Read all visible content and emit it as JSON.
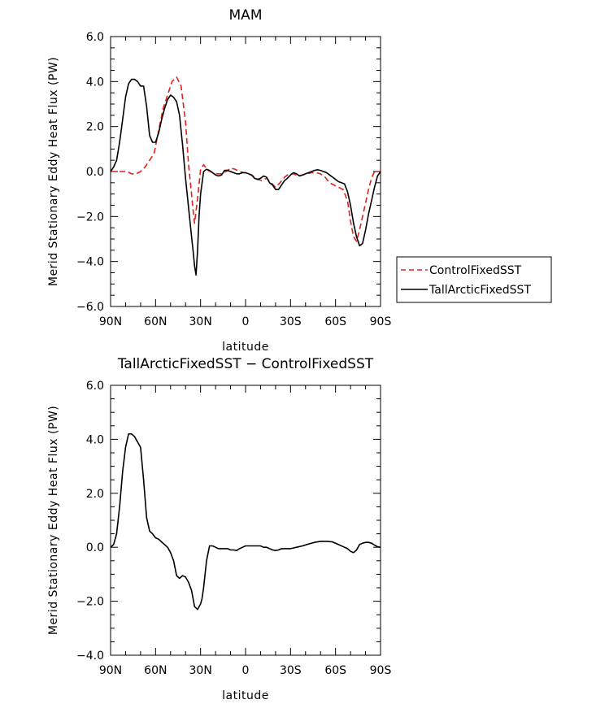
{
  "chart_data": [
    {
      "type": "line",
      "title": "MAM",
      "xlabel": "latitude",
      "ylabel": "Merid Stationary Eddy Heat Flux (PW)",
      "xlim": [
        90,
        -90
      ],
      "ylim": [
        -6,
        6
      ],
      "x_tick_values": [
        90,
        60,
        30,
        0,
        -30,
        -60,
        -90
      ],
      "x_tick_labels": [
        "90N",
        "60N",
        "30N",
        "0",
        "30S",
        "60S",
        "90S"
      ],
      "y_tick_values": [
        6,
        4,
        2,
        0,
        -2,
        -4,
        -6
      ],
      "y_tick_labels": [
        "6.0",
        "4.0",
        "2.0",
        "0.0",
        "−2.0",
        "−4.0",
        "−6.0"
      ],
      "legend": "right",
      "series": [
        {
          "name": "ControlFixedSST",
          "color": "#e0211d",
          "dash": "dashed",
          "x": [
            90,
            85,
            82,
            79,
            76,
            73,
            70,
            67,
            64,
            61,
            58,
            55,
            52,
            49,
            46,
            43,
            40,
            38,
            36,
            35,
            34,
            32,
            30,
            28,
            25,
            22,
            19,
            16,
            13,
            10,
            7,
            4,
            1,
            -2,
            -5,
            -8,
            -11,
            -14,
            -17,
            -20,
            -23,
            -26,
            -29,
            -32,
            -35,
            -38,
            -41,
            -44,
            -47,
            -50,
            -53,
            -56,
            -59,
            -62,
            -65,
            -68,
            -70,
            -72,
            -74,
            -76,
            -78,
            -80,
            -82,
            -84,
            -86,
            -88,
            -90
          ],
          "y": [
            0,
            0,
            0,
            0,
            -0.1,
            -0.1,
            0,
            0.2,
            0.5,
            0.8,
            1.8,
            2.8,
            3.4,
            4.0,
            4.2,
            3.8,
            2.2,
            0.3,
            -1.0,
            -1.7,
            -2.3,
            -1.2,
            0.1,
            0.3,
            0.05,
            -0.05,
            -0.1,
            -0.1,
            0.0,
            0.15,
            0.1,
            0.0,
            -0.05,
            -0.1,
            -0.2,
            -0.35,
            -0.4,
            -0.3,
            -0.5,
            -0.7,
            -0.5,
            -0.25,
            -0.1,
            -0.1,
            -0.2,
            -0.15,
            -0.1,
            -0.05,
            -0.05,
            -0.1,
            -0.25,
            -0.5,
            -0.6,
            -0.7,
            -0.8,
            -1.3,
            -2.2,
            -2.9,
            -3.1,
            -2.6,
            -2.0,
            -1.4,
            -0.8,
            -0.3,
            0,
            0,
            0
          ]
        },
        {
          "name": "TallArcticFixedSST",
          "color": "#000000",
          "dash": "solid",
          "x": [
            90,
            88,
            86,
            84,
            82,
            80,
            78,
            76,
            74,
            72,
            70,
            68,
            66,
            64,
            62,
            60,
            58,
            56,
            54,
            52,
            50,
            48,
            46,
            44,
            42,
            40,
            38,
            36,
            35,
            34,
            33,
            32,
            31,
            30,
            28,
            26,
            24,
            22,
            20,
            18,
            16,
            14,
            12,
            10,
            8,
            6,
            4,
            2,
            0,
            -2,
            -4,
            -6,
            -8,
            -10,
            -12,
            -14,
            -16,
            -18,
            -20,
            -22,
            -24,
            -26,
            -28,
            -30,
            -32,
            -34,
            -36,
            -38,
            -40,
            -42,
            -44,
            -46,
            -48,
            -50,
            -52,
            -54,
            -56,
            -58,
            -60,
            -62,
            -64,
            -66,
            -68,
            -70,
            -72,
            -74,
            -76,
            -78,
            -80,
            -82,
            -84,
            -86,
            -88,
            -90
          ],
          "y": [
            0,
            0.2,
            0.5,
            1.3,
            2.3,
            3.3,
            3.9,
            4.1,
            4.1,
            4.0,
            3.8,
            3.8,
            2.9,
            1.6,
            1.3,
            1.3,
            1.7,
            2.3,
            2.8,
            3.2,
            3.4,
            3.3,
            3.1,
            2.5,
            1.2,
            -0.3,
            -1.6,
            -2.9,
            -3.5,
            -4.2,
            -4.6,
            -3.5,
            -2.0,
            -1.0,
            0.0,
            0.1,
            0.05,
            -0.05,
            -0.15,
            -0.2,
            -0.15,
            0.05,
            0.05,
            0.0,
            -0.05,
            -0.1,
            -0.1,
            -0.05,
            -0.05,
            -0.1,
            -0.15,
            -0.3,
            -0.35,
            -0.3,
            -0.2,
            -0.25,
            -0.5,
            -0.6,
            -0.8,
            -0.8,
            -0.6,
            -0.4,
            -0.3,
            -0.15,
            -0.05,
            -0.1,
            -0.2,
            -0.15,
            -0.1,
            -0.05,
            0.0,
            0.05,
            0.08,
            0.05,
            0.0,
            -0.05,
            -0.15,
            -0.25,
            -0.35,
            -0.45,
            -0.5,
            -0.55,
            -0.9,
            -1.5,
            -2.3,
            -2.9,
            -3.3,
            -3.2,
            -2.6,
            -1.9,
            -1.3,
            -0.7,
            -0.2,
            0
          ]
        }
      ]
    },
    {
      "type": "line",
      "title": "TallArcticFixedSST − ControlFixedSST",
      "xlabel": "latitude",
      "ylabel": "Merid Stationary Eddy Heat Flux (PW)",
      "xlim": [
        90,
        -90
      ],
      "ylim": [
        -4,
        6
      ],
      "x_tick_values": [
        90,
        60,
        30,
        0,
        -30,
        -60,
        -90
      ],
      "x_tick_labels": [
        "90N",
        "60N",
        "30N",
        "0",
        "30S",
        "60S",
        "90S"
      ],
      "y_tick_values": [
        6,
        4,
        2,
        0,
        -2,
        -4
      ],
      "y_tick_labels": [
        "6.0",
        "4.0",
        "2.0",
        "0.0",
        "−2.0",
        "−4.0"
      ],
      "series": [
        {
          "color": "#000000",
          "dash": "solid",
          "x": [
            90,
            88,
            86,
            84,
            82,
            80,
            78,
            76,
            74,
            72,
            70,
            68,
            66,
            64,
            62,
            60,
            58,
            56,
            54,
            52,
            50,
            48,
            46,
            44,
            42,
            40,
            38,
            36,
            34,
            32,
            30,
            29,
            28,
            26,
            24,
            22,
            20,
            18,
            16,
            14,
            12,
            10,
            8,
            6,
            4,
            2,
            0,
            -2,
            -4,
            -6,
            -8,
            -10,
            -12,
            -14,
            -16,
            -18,
            -20,
            -22,
            -24,
            -26,
            -28,
            -30,
            -34,
            -38,
            -42,
            -46,
            -50,
            -54,
            -58,
            -62,
            -66,
            -68,
            -70,
            -72,
            -74,
            -76,
            -78,
            -80,
            -82,
            -84,
            -86,
            -88,
            -90
          ],
          "y": [
            0,
            0.1,
            0.5,
            1.5,
            2.8,
            3.7,
            4.2,
            4.2,
            4.1,
            3.9,
            3.7,
            2.5,
            1.1,
            0.6,
            0.5,
            0.35,
            0.3,
            0.2,
            0.1,
            0.0,
            -0.2,
            -0.5,
            -1.05,
            -1.15,
            -1.05,
            -1.1,
            -1.3,
            -1.6,
            -2.2,
            -2.3,
            -2.1,
            -1.9,
            -1.5,
            -0.5,
            0.05,
            0.05,
            0.0,
            -0.05,
            -0.05,
            -0.05,
            -0.05,
            -0.1,
            -0.1,
            -0.12,
            -0.05,
            0.0,
            0.05,
            0.05,
            0.05,
            0.05,
            0.05,
            0.05,
            0.0,
            0.0,
            -0.05,
            -0.1,
            -0.12,
            -0.1,
            -0.05,
            -0.05,
            -0.05,
            -0.05,
            0.0,
            0.05,
            0.12,
            0.18,
            0.22,
            0.22,
            0.2,
            0.1,
            0.0,
            -0.05,
            -0.15,
            -0.2,
            -0.1,
            0.1,
            0.15,
            0.18,
            0.18,
            0.15,
            0.08,
            0.02,
            0
          ]
        }
      ]
    }
  ]
}
